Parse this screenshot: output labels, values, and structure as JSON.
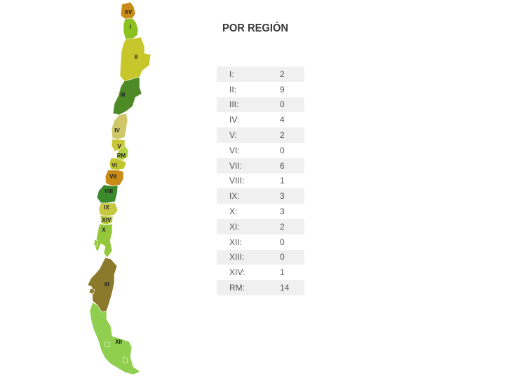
{
  "title": "POR REGIÓN",
  "rows": [
    {
      "code": "I:",
      "count": "2"
    },
    {
      "code": "II:",
      "count": "9"
    },
    {
      "code": "III:",
      "count": "0"
    },
    {
      "code": "IV:",
      "count": "4"
    },
    {
      "code": "V:",
      "count": "2"
    },
    {
      "code": "VI:",
      "count": "0"
    },
    {
      "code": "VII:",
      "count": "6"
    },
    {
      "code": "VIII:",
      "count": "1"
    },
    {
      "code": "IX:",
      "count": "3"
    },
    {
      "code": "X:",
      "count": "3"
    },
    {
      "code": "XI:",
      "count": "2"
    },
    {
      "code": "XII:",
      "count": "0"
    },
    {
      "code": "XIII:",
      "count": "0"
    },
    {
      "code": "XIV:",
      "count": "1"
    },
    {
      "code": "RM:",
      "count": "14"
    }
  ],
  "map_labels": {
    "xv": "XV",
    "i": "I",
    "ii": "II",
    "iii": "III",
    "iv": "IV",
    "v": "V",
    "rm": "RM",
    "vi": "VI",
    "vii": "VII",
    "viii": "VIII",
    "ix": "IX",
    "xiv": "XIV",
    "x": "X",
    "xi": "XI",
    "xii": "XII"
  },
  "colors": {
    "xv": "#c98b1a",
    "i": "#8cc21f",
    "ii": "#c7c62a",
    "iii": "#4e8a25",
    "iv": "#cfc76a",
    "v": "#c9c63a",
    "rm": "#b4d444",
    "vi": "#c2c62e",
    "vii": "#c98b1a",
    "viii": "#3a8a2c",
    "ix": "#c6c93f",
    "xiv": "#b7c83a",
    "x": "#94c83a",
    "xi": "#8b7a2c",
    "xii": "#8fce4e"
  }
}
